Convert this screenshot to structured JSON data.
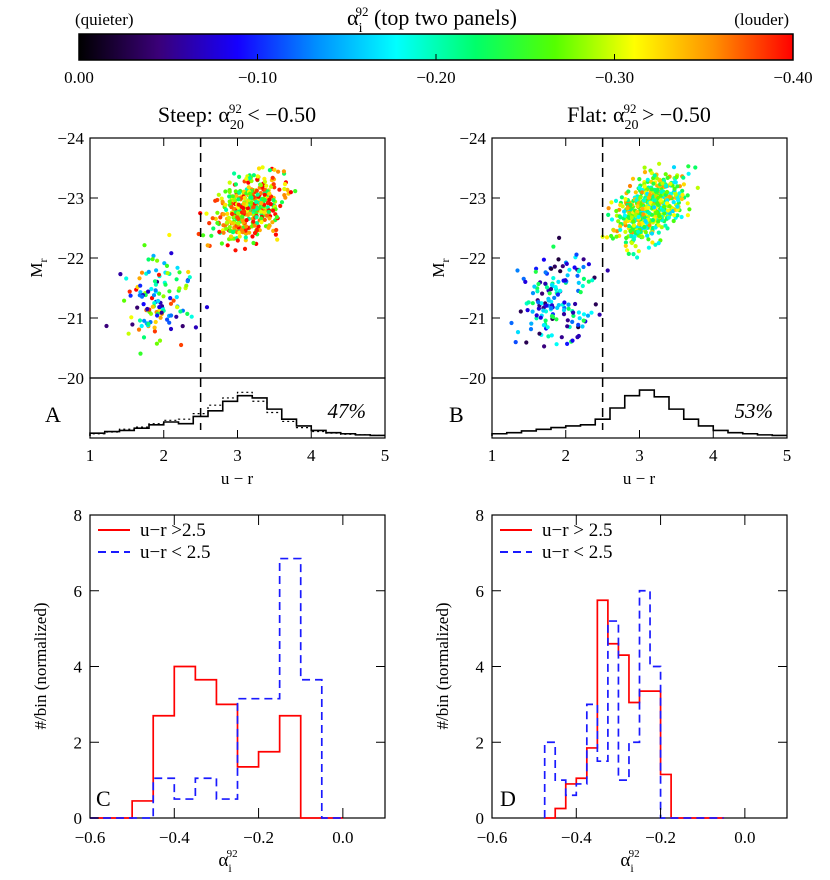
{
  "colorbar": {
    "label_main": "α",
    "label_sub": "i",
    "label_sup": "92",
    "label_rest": " (top two panels)",
    "left_note": "(quieter)",
    "right_note": "(louder)",
    "ticks": [
      "0.00",
      "−0.10",
      "−0.20",
      "−0.30",
      "−0.40"
    ],
    "range": [
      0.0,
      -0.4
    ],
    "colors": [
      "#000000",
      "#3a0078",
      "#1500ff",
      "#0090ff",
      "#00ffff",
      "#00ff6a",
      "#55ff00",
      "#ffff00",
      "#ff9000",
      "#ff0000"
    ]
  },
  "chart_data": [
    {
      "id": "A",
      "type": "scatter",
      "title_pre": "Steep: α",
      "title_sub": "20",
      "title_sup": "92",
      "title_post": " < −0.50",
      "panel_letter": "A",
      "percent_label": "47%",
      "xlabel": "u − r",
      "ylabel_main": "M",
      "ylabel_sub": "r",
      "xlim": [
        1,
        5
      ],
      "ylim": [
        -20,
        -24
      ],
      "x_ticks": [
        "1",
        "2",
        "3",
        "4",
        "5"
      ],
      "y_ticks": [
        "−20",
        "−21",
        "−22",
        "−23",
        "−24"
      ],
      "divider_x": 2.5,
      "color_encoding": "alpha_i_92",
      "histogram_bins": [
        1.1,
        1.3,
        1.5,
        1.7,
        1.9,
        2.1,
        2.3,
        2.5,
        2.7,
        2.9,
        3.1,
        3.3,
        3.5,
        3.7,
        3.9,
        4.1,
        4.3,
        4.5,
        4.7,
        4.9
      ],
      "histogram_solid": [
        0.05,
        0.08,
        0.1,
        0.14,
        0.2,
        0.25,
        0.22,
        0.35,
        0.45,
        0.62,
        0.72,
        0.68,
        0.48,
        0.3,
        0.18,
        0.1,
        0.06,
        0.04,
        0.02,
        0.01
      ],
      "histogram_dotted": [
        0.04,
        0.07,
        0.12,
        0.16,
        0.22,
        0.28,
        0.3,
        0.4,
        0.55,
        0.68,
        0.78,
        0.62,
        0.42,
        0.26,
        0.15,
        0.08,
        0.05,
        0.03,
        0.02,
        0.01
      ]
    },
    {
      "id": "B",
      "type": "scatter",
      "title_pre": "Flat: α",
      "title_sub": "20",
      "title_sup": "92",
      "title_post": " > −0.50",
      "panel_letter": "B",
      "percent_label": "53%",
      "xlabel": "u − r",
      "ylabel_main": "M",
      "ylabel_sub": "r",
      "xlim": [
        1,
        5
      ],
      "ylim": [
        -20,
        -24
      ],
      "x_ticks": [
        "1",
        "2",
        "3",
        "4",
        "5"
      ],
      "y_ticks": [
        "−20",
        "−21",
        "−22",
        "−23",
        "−24"
      ],
      "divider_x": 2.5,
      "color_encoding": "alpha_i_92",
      "histogram_bins": [
        1.1,
        1.3,
        1.5,
        1.7,
        1.9,
        2.1,
        2.3,
        2.5,
        2.7,
        2.9,
        3.1,
        3.3,
        3.5,
        3.7,
        3.9,
        4.1,
        4.3,
        4.5,
        4.7,
        4.9
      ],
      "histogram_solid": [
        0.04,
        0.06,
        0.09,
        0.12,
        0.15,
        0.18,
        0.2,
        0.3,
        0.5,
        0.72,
        0.82,
        0.7,
        0.48,
        0.3,
        0.18,
        0.1,
        0.06,
        0.04,
        0.02,
        0.01
      ]
    },
    {
      "id": "C",
      "type": "line",
      "panel_letter": "C",
      "ylabel": "#/bin (normalized)",
      "xlabel_main": "α",
      "xlabel_sub": "i",
      "xlabel_sup": "92",
      "xlim": [
        -0.6,
        0.1
      ],
      "ylim": [
        0,
        8
      ],
      "x_ticks": [
        "−0.6",
        "−0.4",
        "−0.2",
        "0.0"
      ],
      "y_ticks": [
        "0",
        "2",
        "4",
        "6",
        "8"
      ],
      "bin_edges": [
        -0.6,
        -0.55,
        -0.5,
        -0.45,
        -0.4,
        -0.35,
        -0.3,
        -0.25,
        -0.2,
        -0.15,
        -0.1,
        -0.05,
        0.0
      ],
      "series": [
        {
          "name": "u−r >2.5",
          "color": "#ff0000",
          "dash": "solid",
          "values": [
            0,
            0,
            0.45,
            2.7,
            4.0,
            3.65,
            3.0,
            1.35,
            1.75,
            2.7,
            0,
            0
          ]
        },
        {
          "name": "u−r < 2.5",
          "color": "#1a1aff",
          "dash": "dashed",
          "values": [
            0,
            0,
            0,
            1.05,
            0.5,
            1.05,
            0.5,
            3.15,
            3.15,
            6.85,
            3.65,
            0
          ]
        }
      ]
    },
    {
      "id": "D",
      "type": "line",
      "panel_letter": "D",
      "ylabel": "#/bin (normalized)",
      "xlabel_main": "α",
      "xlabel_sub": "i",
      "xlabel_sup": "92",
      "xlim": [
        -0.6,
        0.1
      ],
      "ylim": [
        0,
        8
      ],
      "x_ticks": [
        "−0.6",
        "−0.4",
        "−0.2",
        "0.0"
      ],
      "y_ticks": [
        "0",
        "2",
        "4",
        "6",
        "8"
      ],
      "bin_edges": [
        -0.475,
        -0.45,
        -0.425,
        -0.4,
        -0.375,
        -0.35,
        -0.325,
        -0.3,
        -0.275,
        -0.25,
        -0.225,
        -0.2,
        -0.175,
        -0.15,
        -0.125,
        -0.1,
        -0.075,
        -0.05
      ],
      "series": [
        {
          "name": "u−r > 2.5",
          "color": "#ff0000",
          "dash": "solid",
          "values": [
            0,
            0.25,
            0.9,
            1.05,
            1.85,
            5.75,
            4.6,
            4.3,
            3.05,
            3.35,
            3.35,
            1.15,
            0,
            0,
            0,
            0,
            0
          ]
        },
        {
          "name": "u−r < 2.5",
          "color": "#1a1aff",
          "dash": "dashed",
          "values": [
            2.0,
            1.0,
            0.6,
            0.9,
            3.0,
            1.5,
            5.2,
            1.0,
            2.0,
            6.0,
            4.0,
            0,
            0,
            0,
            0,
            0,
            0
          ]
        }
      ]
    }
  ]
}
